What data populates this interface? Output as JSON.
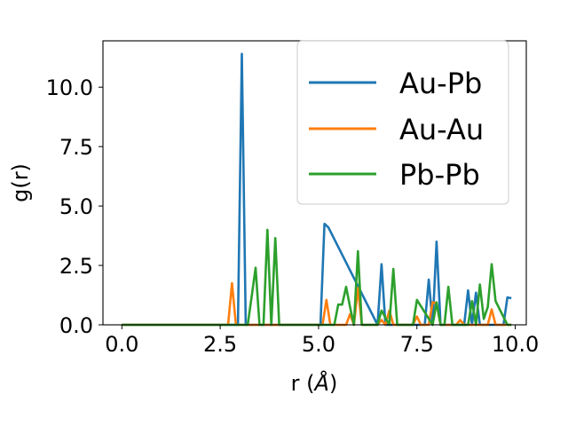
{
  "chart_data": {
    "type": "line",
    "xlabel_main": "r (",
    "xlabel_unit": "Å",
    "xlabel_close": ")",
    "ylabel": "g(r)",
    "xlim": [
      -0.48,
      10.28
    ],
    "ylim": [
      0,
      11.95
    ],
    "xticks": [
      0,
      2.5,
      5,
      7.5,
      10
    ],
    "xtick_labels": [
      "0.0",
      "2.5",
      "5.0",
      "7.5",
      "10.0"
    ],
    "yticks": [
      0,
      2.5,
      5,
      7.5,
      10
    ],
    "ytick_labels": [
      "0.0",
      "2.5",
      "5.0",
      "7.5",
      "10.0"
    ],
    "grid": false,
    "legend_position": "upper-right",
    "colors": {
      "Au-Pb": "#1f77b4",
      "Au-Au": "#ff7f0e",
      "Pb-Pb": "#2ca02c"
    },
    "series": [
      {
        "name": "Au-Pb",
        "x": [
          0,
          2.95,
          3.05,
          3.15,
          5.05,
          5.15,
          5.25,
          6.5,
          6.6,
          6.7,
          7.0,
          7.3,
          7.7,
          7.8,
          7.9,
          8.0,
          8.1,
          8.7,
          8.8,
          8.9,
          9.0,
          9.1,
          9.2,
          9.7,
          9.8,
          9.9
        ],
        "y": [
          0,
          0,
          11.4,
          0,
          0,
          4.25,
          4.1,
          0,
          2.55,
          0,
          0,
          0,
          0,
          1.9,
          0,
          3.5,
          0,
          0,
          1.45,
          0,
          1.35,
          0,
          0,
          0,
          1.15,
          1.12
        ]
      },
      {
        "name": "Au-Au",
        "x": [
          0,
          2.7,
          2.8,
          2.9,
          5.1,
          5.2,
          5.3,
          5.7,
          5.8,
          5.9,
          6.0,
          6.1,
          6.5,
          6.6,
          6.7,
          6.8,
          6.9,
          7.4,
          7.5,
          7.6,
          7.8,
          7.9,
          8.0,
          8.1,
          8.5,
          8.6,
          8.7,
          9.3,
          9.4,
          9.5,
          9.9
        ],
        "y": [
          0,
          0,
          1.75,
          0,
          0,
          1.05,
          0,
          0,
          0.45,
          0,
          1.55,
          0,
          0,
          0.2,
          0,
          0.6,
          0,
          0,
          0.35,
          0,
          0,
          0.95,
          0.9,
          0,
          0,
          0.2,
          0,
          0,
          0.65,
          0,
          0
        ]
      },
      {
        "name": "Pb-Pb",
        "x": [
          0,
          3.2,
          3.3,
          3.4,
          3.5,
          3.6,
          3.7,
          3.8,
          3.9,
          4.0,
          5.4,
          5.5,
          5.6,
          5.7,
          5.8,
          5.9,
          6.0,
          6.1,
          6.5,
          6.6,
          6.7,
          6.8,
          6.9,
          7.0,
          7.3,
          7.4,
          7.5,
          7.9,
          8.0,
          8.1,
          8.2,
          8.3,
          8.4,
          8.8,
          8.9,
          9.0,
          9.1,
          9.2,
          9.3,
          9.4,
          9.5,
          9.8,
          9.9
        ],
        "y": [
          0,
          0,
          1.2,
          2.4,
          0,
          0,
          4.0,
          0,
          3.65,
          0,
          0,
          0.85,
          0.85,
          1.6,
          0.75,
          0,
          3.1,
          0,
          0,
          0.6,
          0.3,
          0,
          2.35,
          0,
          0,
          0,
          1.05,
          0,
          0.95,
          0,
          0,
          1.6,
          0,
          0,
          1.0,
          0,
          1.7,
          0.25,
          0.75,
          2.55,
          1.0,
          0,
          0
        ]
      }
    ]
  }
}
